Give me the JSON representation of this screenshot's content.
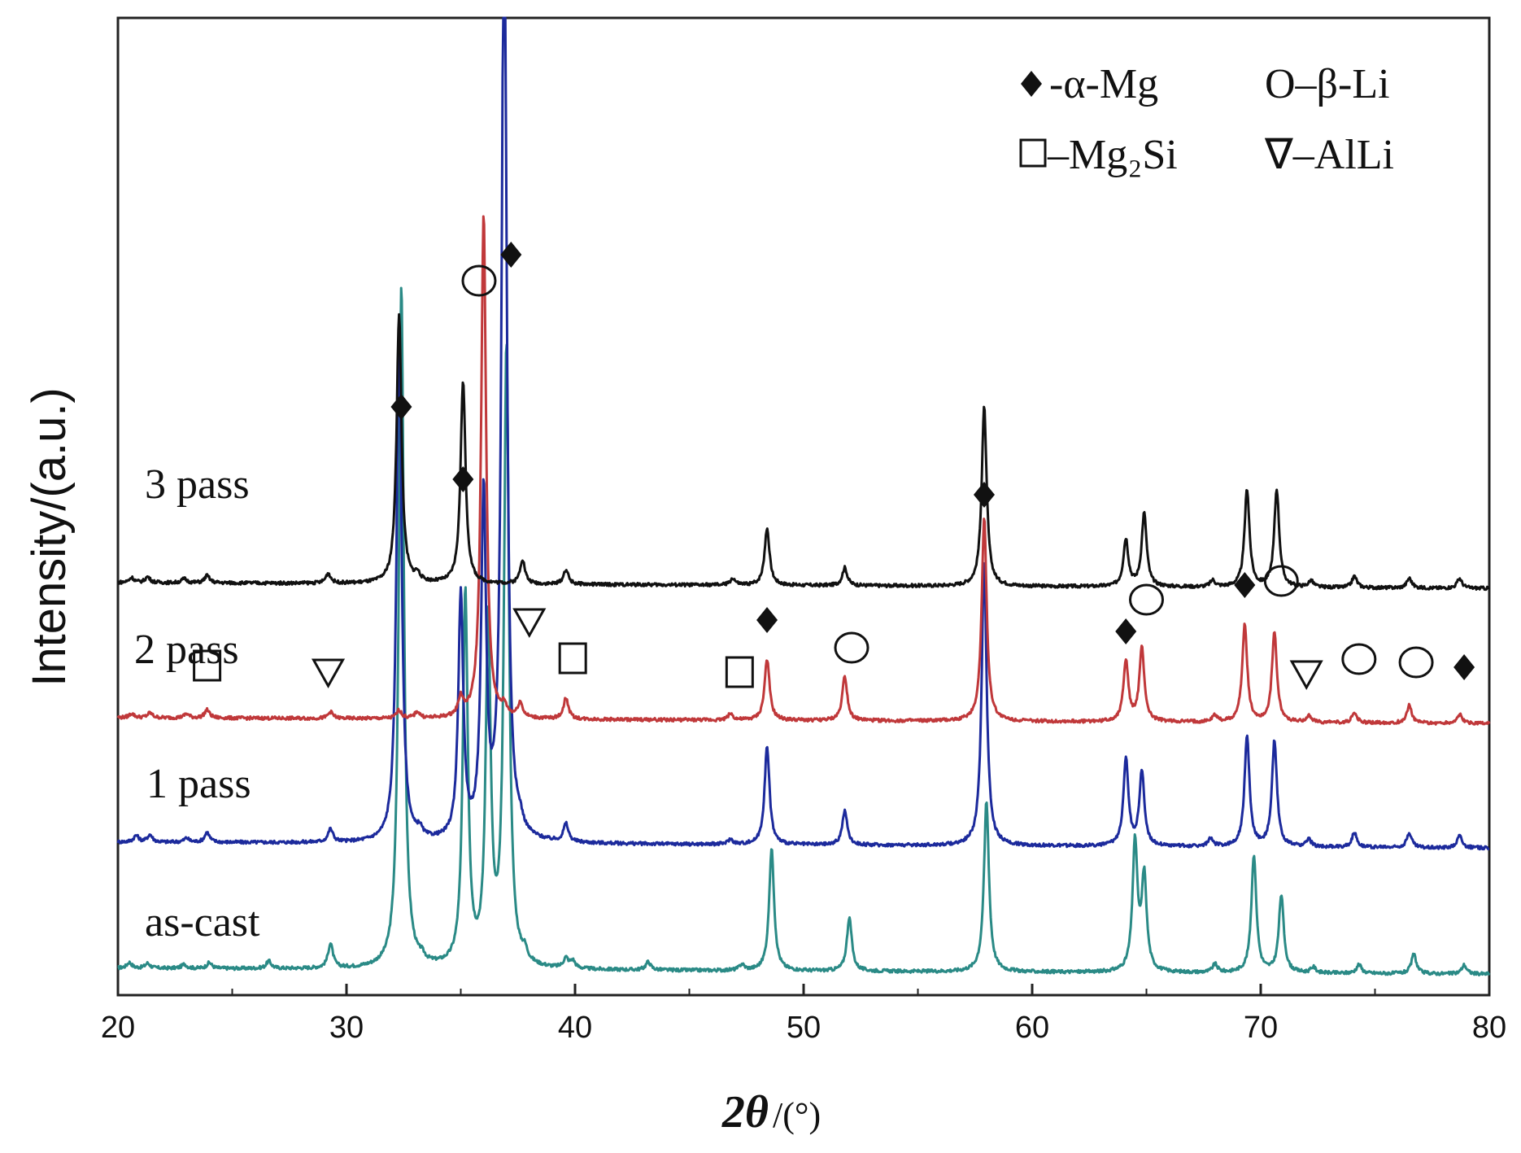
{
  "chart_data": {
    "type": "line",
    "title": "",
    "xlabel_main": "2θ",
    "xlabel_unit": "/(°)",
    "ylabel": "Intensity/(a.u.)",
    "xlim": [
      20,
      80
    ],
    "x_ticks": [
      20,
      30,
      40,
      50,
      60,
      70,
      80
    ],
    "y_ticks_shown": false,
    "legend": {
      "placement": "top-right",
      "entries": [
        {
          "symbol": "diamond",
          "label": "-α-Mg"
        },
        {
          "symbol": "circle",
          "label": "O–β-Li"
        },
        {
          "symbol": "square",
          "label": "–Mg₂Si"
        },
        {
          "symbol": "triangle",
          "label": "∇–AlLi"
        }
      ]
    },
    "series": [
      {
        "name": "as-cast",
        "color": "#2a8a86",
        "offset": 0,
        "peaks": [
          {
            "x": 20.5,
            "h": 7
          },
          {
            "x": 21.3,
            "h": 6
          },
          {
            "x": 22.9,
            "h": 5
          },
          {
            "x": 24.0,
            "h": 7
          },
          {
            "x": 26.6,
            "h": 9
          },
          {
            "x": 29.3,
            "h": 30
          },
          {
            "x": 32.4,
            "h": 840
          },
          {
            "x": 33.3,
            "h": 6
          },
          {
            "x": 35.2,
            "h": 460
          },
          {
            "x": 36.2,
            "h": 420
          },
          {
            "x": 37.0,
            "h": 760
          },
          {
            "x": 37.8,
            "h": 12
          },
          {
            "x": 39.6,
            "h": 12
          },
          {
            "x": 39.9,
            "h": 9
          },
          {
            "x": 43.2,
            "h": 10
          },
          {
            "x": 47.3,
            "h": 7
          },
          {
            "x": 48.6,
            "h": 150
          },
          {
            "x": 52.0,
            "h": 66
          },
          {
            "x": 58.0,
            "h": 210
          },
          {
            "x": 64.5,
            "h": 158
          },
          {
            "x": 64.9,
            "h": 115
          },
          {
            "x": 68.0,
            "h": 10
          },
          {
            "x": 69.7,
            "h": 145
          },
          {
            "x": 70.9,
            "h": 95
          },
          {
            "x": 72.3,
            "h": 7
          },
          {
            "x": 74.3,
            "h": 11
          },
          {
            "x": 76.7,
            "h": 24
          },
          {
            "x": 78.9,
            "h": 11
          }
        ]
      },
      {
        "name": "1 pass",
        "color": "#1c2a9c",
        "offset": 155,
        "peaks": [
          {
            "x": 20.8,
            "h": 8
          },
          {
            "x": 21.4,
            "h": 9
          },
          {
            "x": 23.0,
            "h": 5
          },
          {
            "x": 23.9,
            "h": 12
          },
          {
            "x": 29.3,
            "h": 16
          },
          {
            "x": 32.3,
            "h": 640
          },
          {
            "x": 33.2,
            "h": 10
          },
          {
            "x": 35.0,
            "h": 300
          },
          {
            "x": 36.0,
            "h": 420
          },
          {
            "x": 36.9,
            "h": 1200
          },
          {
            "x": 37.6,
            "h": 10
          },
          {
            "x": 39.6,
            "h": 22
          },
          {
            "x": 46.8,
            "h": 6
          },
          {
            "x": 48.4,
            "h": 120
          },
          {
            "x": 51.8,
            "h": 42
          },
          {
            "x": 57.9,
            "h": 350
          },
          {
            "x": 64.1,
            "h": 108
          },
          {
            "x": 64.8,
            "h": 92
          },
          {
            "x": 67.8,
            "h": 9
          },
          {
            "x": 69.4,
            "h": 135
          },
          {
            "x": 70.6,
            "h": 130
          },
          {
            "x": 72.1,
            "h": 9
          },
          {
            "x": 74.1,
            "h": 18
          },
          {
            "x": 76.5,
            "h": 18
          },
          {
            "x": 78.7,
            "h": 15
          }
        ]
      },
      {
        "name": "2 pass",
        "color": "#c0383a",
        "offset": 308,
        "peaks": [
          {
            "x": 20.6,
            "h": 5
          },
          {
            "x": 21.4,
            "h": 6
          },
          {
            "x": 23.0,
            "h": 5
          },
          {
            "x": 23.9,
            "h": 10
          },
          {
            "x": 29.3,
            "h": 8
          },
          {
            "x": 32.3,
            "h": 10
          },
          {
            "x": 33.1,
            "h": 8
          },
          {
            "x": 35.0,
            "h": 22
          },
          {
            "x": 36.0,
            "h": 620
          },
          {
            "x": 36.9,
            "h": 12
          },
          {
            "x": 37.6,
            "h": 18
          },
          {
            "x": 39.6,
            "h": 26
          },
          {
            "x": 46.8,
            "h": 8
          },
          {
            "x": 48.4,
            "h": 75
          },
          {
            "x": 51.8,
            "h": 55
          },
          {
            "x": 57.9,
            "h": 250
          },
          {
            "x": 64.1,
            "h": 75
          },
          {
            "x": 64.8,
            "h": 90
          },
          {
            "x": 68.0,
            "h": 8
          },
          {
            "x": 69.3,
            "h": 120
          },
          {
            "x": 70.6,
            "h": 110
          },
          {
            "x": 72.1,
            "h": 8
          },
          {
            "x": 74.1,
            "h": 12
          },
          {
            "x": 76.5,
            "h": 22
          },
          {
            "x": 78.7,
            "h": 11
          }
        ]
      },
      {
        "name": "3 pass",
        "color": "#111111",
        "offset": 474,
        "peaks": [
          {
            "x": 20.6,
            "h": 6
          },
          {
            "x": 21.3,
            "h": 7
          },
          {
            "x": 22.9,
            "h": 5
          },
          {
            "x": 23.9,
            "h": 9
          },
          {
            "x": 29.2,
            "h": 12
          },
          {
            "x": 32.3,
            "h": 330
          },
          {
            "x": 33.1,
            "h": 9
          },
          {
            "x": 35.1,
            "h": 250
          },
          {
            "x": 37.7,
            "h": 30
          },
          {
            "x": 39.6,
            "h": 18
          },
          {
            "x": 46.9,
            "h": 8
          },
          {
            "x": 48.4,
            "h": 70
          },
          {
            "x": 51.8,
            "h": 22
          },
          {
            "x": 57.9,
            "h": 220
          },
          {
            "x": 64.1,
            "h": 58
          },
          {
            "x": 64.9,
            "h": 90
          },
          {
            "x": 67.9,
            "h": 8
          },
          {
            "x": 69.4,
            "h": 120
          },
          {
            "x": 70.7,
            "h": 120
          },
          {
            "x": 72.2,
            "h": 8
          },
          {
            "x": 74.1,
            "h": 14
          },
          {
            "x": 76.5,
            "h": 12
          },
          {
            "x": 78.7,
            "h": 12
          }
        ]
      }
    ],
    "annotations": [
      {
        "symbol": "diamond",
        "x": 32.4,
        "level": 690
      },
      {
        "symbol": "diamond",
        "x": 35.1,
        "level": 601
      },
      {
        "symbol": "circle",
        "x": 35.8,
        "level": 845
      },
      {
        "symbol": "diamond",
        "x": 37.2,
        "level": 877
      },
      {
        "symbol": "diamond",
        "x": 57.9,
        "level": 582
      },
      {
        "symbol": "diamond",
        "x": 48.4,
        "level": 428
      },
      {
        "symbol": "circle",
        "x": 52.1,
        "level": 394
      },
      {
        "symbol": "diamond",
        "x": 64.1,
        "level": 414
      },
      {
        "symbol": "circle",
        "x": 65.0,
        "level": 453
      },
      {
        "symbol": "diamond",
        "x": 69.3,
        "level": 471
      },
      {
        "symbol": "circle",
        "x": 70.9,
        "level": 476
      },
      {
        "symbol": "circle",
        "x": 74.3,
        "level": 380
      },
      {
        "symbol": "circle",
        "x": 76.8,
        "level": 376
      },
      {
        "symbol": "diamond",
        "x": 78.9,
        "level": 370
      },
      {
        "symbol": "square",
        "x": 23.9,
        "level": 372
      },
      {
        "symbol": "triangle",
        "x": 29.2,
        "level": 363
      },
      {
        "symbol": "triangle",
        "x": 38.0,
        "level": 425
      },
      {
        "symbol": "square",
        "x": 39.9,
        "level": 381
      },
      {
        "symbol": "square",
        "x": 47.2,
        "level": 364
      },
      {
        "symbol": "triangle",
        "x": 72.0,
        "level": 361
      }
    ]
  }
}
